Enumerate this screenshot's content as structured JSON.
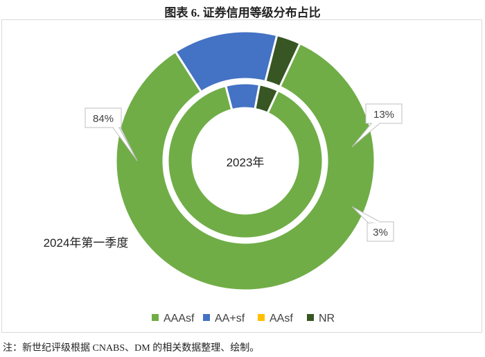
{
  "title": "图表 6.  证券信用等级分布占比",
  "note": "注：新世纪评级根据 CNABS、DM 的相关数据整理、绘制。",
  "colors": {
    "AAAsf": "#70ad47",
    "AA+sf": "#4472c4",
    "AAsf": "#ffc000",
    "NR": "#375623"
  },
  "chart_data": {
    "type": "pie",
    "subtype": "doughnut",
    "categories": [
      "AAAsf",
      "AA+sf",
      "AAsf",
      "NR"
    ],
    "series": [
      {
        "name": "2023年",
        "ring": "inner",
        "values": [
          89,
          7,
          0,
          4
        ]
      },
      {
        "name": "2024年第一季度",
        "ring": "outer",
        "values": [
          84,
          13,
          0,
          3
        ]
      }
    ],
    "data_labels": [
      "84%",
      "13%",
      "3%"
    ],
    "center_label": "2023年",
    "outer_label": "2024年第一季度",
    "legend": {
      "position": "bottom",
      "entries": [
        "AAAsf",
        "AA+sf",
        "AAsf",
        "NR"
      ]
    }
  }
}
